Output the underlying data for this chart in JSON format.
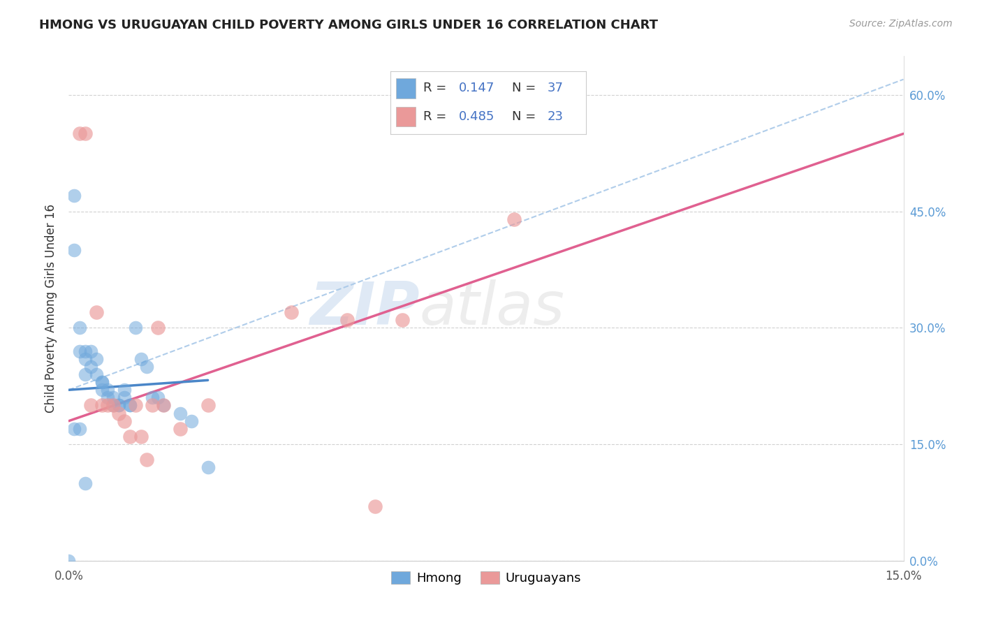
{
  "title": "HMONG VS URUGUAYAN CHILD POVERTY AMONG GIRLS UNDER 16 CORRELATION CHART",
  "source": "Source: ZipAtlas.com",
  "ylabel": "Child Poverty Among Girls Under 16",
  "xlim": [
    0,
    0.15
  ],
  "ylim": [
    0,
    0.65
  ],
  "legend_r_blue": "0.147",
  "legend_n_blue": "37",
  "legend_r_pink": "0.485",
  "legend_n_pink": "23",
  "hmong_x": [
    0.0,
    0.001,
    0.001,
    0.002,
    0.002,
    0.003,
    0.003,
    0.003,
    0.004,
    0.004,
    0.005,
    0.005,
    0.006,
    0.006,
    0.006,
    0.007,
    0.007,
    0.008,
    0.008,
    0.009,
    0.009,
    0.01,
    0.01,
    0.011,
    0.011,
    0.012,
    0.013,
    0.014,
    0.015,
    0.016,
    0.017,
    0.02,
    0.022,
    0.025,
    0.001,
    0.002,
    0.003
  ],
  "hmong_y": [
    0.0,
    0.47,
    0.4,
    0.3,
    0.27,
    0.27,
    0.26,
    0.24,
    0.27,
    0.25,
    0.26,
    0.24,
    0.23,
    0.23,
    0.22,
    0.22,
    0.21,
    0.21,
    0.2,
    0.2,
    0.2,
    0.22,
    0.21,
    0.2,
    0.2,
    0.3,
    0.26,
    0.25,
    0.21,
    0.21,
    0.2,
    0.19,
    0.18,
    0.12,
    0.17,
    0.17,
    0.1
  ],
  "uruguayan_x": [
    0.002,
    0.003,
    0.004,
    0.005,
    0.006,
    0.007,
    0.008,
    0.009,
    0.01,
    0.011,
    0.012,
    0.013,
    0.014,
    0.015,
    0.016,
    0.017,
    0.02,
    0.025,
    0.04,
    0.055,
    0.06,
    0.08,
    0.05
  ],
  "uruguayan_y": [
    0.55,
    0.55,
    0.2,
    0.32,
    0.2,
    0.2,
    0.2,
    0.19,
    0.18,
    0.16,
    0.2,
    0.16,
    0.13,
    0.2,
    0.3,
    0.2,
    0.17,
    0.2,
    0.32,
    0.07,
    0.31,
    0.44,
    0.31
  ],
  "watermark_zip": "ZIP",
  "watermark_atlas": "atlas",
  "blue_color": "#6fa8dc",
  "pink_color": "#ea9999",
  "blue_line_color": "#4a86c8",
  "pink_line_color": "#e06090",
  "blue_dashed_color": "#a8c8e8",
  "background_color": "#ffffff",
  "grid_color": "#cccccc",
  "ytick_vals": [
    0.0,
    0.15,
    0.3,
    0.45,
    0.6
  ],
  "ytick_labels": [
    "0.0%",
    "15.0%",
    "30.0%",
    "45.0%",
    "60.0%"
  ]
}
